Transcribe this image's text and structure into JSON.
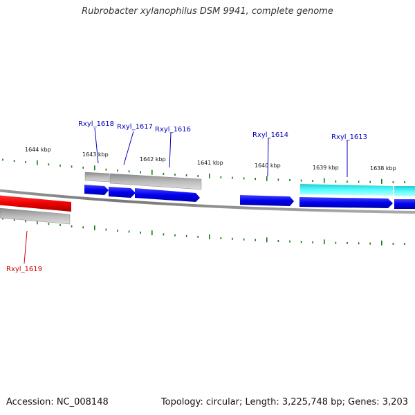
{
  "title": "Rubrobacter xylanophilus DSM 9941, complete genome",
  "accession": "Accession: NC_008148",
  "summary": "Topology: circular; Length: 3,225,748 bp; Genes: 3,203",
  "scale_labels": [
    "1644 kbp",
    "1643 kbp",
    "1642 kbp",
    "1641 kbp",
    "1640 kbp",
    "1639 kbp",
    "1638 kbp"
  ],
  "gene_labels": [
    "Rxyl_1618",
    "Rxyl_1617",
    "Rxyl_1616",
    "Rxyl_1614",
    "Rxyl_1613",
    "Rxyl_1619"
  ],
  "colors": {
    "forward_gene": "#0000ee",
    "selected_gene": "#ee0000",
    "highlight_gene": "#33dddd",
    "pseudo_gene": "#bbbbbb",
    "backbone": "#777777",
    "ticks": "#117711",
    "label_blue": "#0000bb",
    "label_red": "#cc0000"
  }
}
